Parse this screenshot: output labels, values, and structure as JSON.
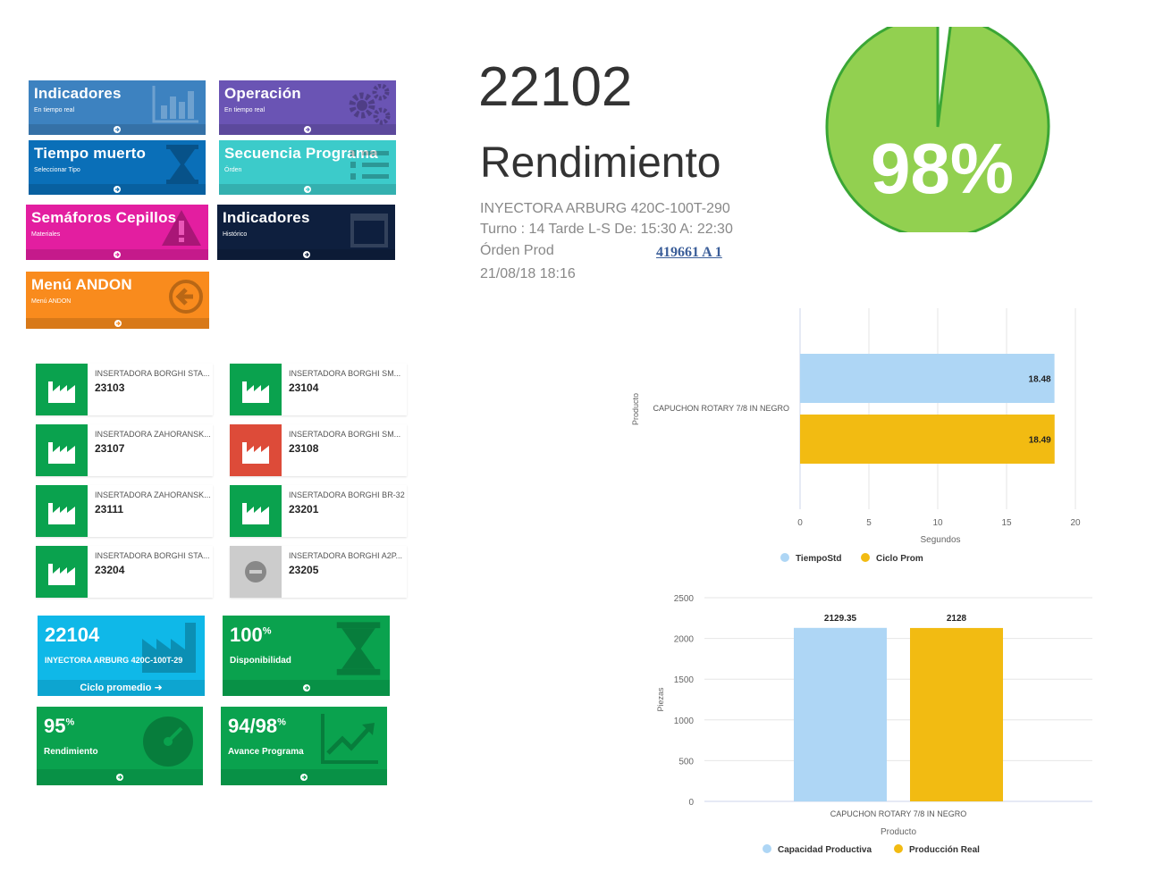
{
  "menu": {
    "tiles": [
      {
        "title": "Indicadores",
        "subtitle": "En tiempo real",
        "color": "#3d82c0",
        "icon": "bar-chart-icon"
      },
      {
        "title": "Operación",
        "subtitle": "En tiempo real",
        "color": "#6a54b4",
        "icon": "gears-icon"
      },
      {
        "title": "Tiempo muerto",
        "subtitle": "Seleccionar Tipo",
        "color": "#0a6fb8",
        "icon": "hourglass-icon"
      },
      {
        "title": "Secuencia Programa",
        "subtitle": "Órden",
        "color": "#3ccbca",
        "icon": "list-icon"
      },
      {
        "title": "Semáforos Cepillos",
        "subtitle": "Materiales",
        "color": "#e31ea0",
        "icon": "warning-icon"
      },
      {
        "title": "Indicadores",
        "subtitle": "Histórico",
        "color": "#0e1f3e",
        "icon": "calendar-icon"
      },
      {
        "title": "Menú ANDON",
        "subtitle": "Menú ANDON",
        "color": "#f98b1d",
        "icon": "back-arrow-icon"
      }
    ]
  },
  "machines": [
    {
      "name": "INSERTADORA BORGHI STA...",
      "number": "23103",
      "status": "green"
    },
    {
      "name": "INSERTADORA BORGHI SM...",
      "number": "23104",
      "status": "green"
    },
    {
      "name": "INSERTADORA ZAHORANSK...",
      "number": "23107",
      "status": "green"
    },
    {
      "name": "INSERTADORA BORGHI SM...",
      "number": "23108",
      "status": "red"
    },
    {
      "name": "INSERTADORA ZAHORANSK...",
      "number": "23111",
      "status": "green"
    },
    {
      "name": "INSERTADORA BORGHI BR-32",
      "number": "23201",
      "status": "green"
    },
    {
      "name": "INSERTADORA BORGHI STA...",
      "number": "23204",
      "status": "green"
    },
    {
      "name": "INSERTADORA BORGHI A2P...",
      "number": "23205",
      "status": "gray"
    }
  ],
  "stats": {
    "machine": {
      "number": "22104",
      "name": "INYECTORA ARBURG 420C-100T-29",
      "footer": "Ciclo promedio"
    },
    "disponibilidad": {
      "value": "100",
      "unit": "%",
      "label": "Disponibilidad"
    },
    "rendimiento": {
      "value": "95",
      "unit": "%",
      "label": "Rendimiento"
    },
    "avance": {
      "value": "94/98",
      "unit": "%",
      "label": "Avance Programa"
    }
  },
  "detail": {
    "number": "22102",
    "title": "Rendimiento",
    "machine_name": "INYECTORA ARBURG 420C-100T-290",
    "shift": "Turno : 14 Tarde L-S De: 15:30 A: 22:30",
    "order_label": "Órden Prod",
    "order_link": "419661 A 1",
    "timestamp": "21/08/18 18:16",
    "gauge_label": "98%",
    "gauge_value": 0.98
  },
  "colors": {
    "green": "#0aa24e",
    "red": "#dd4b39",
    "gray": "#cccccc",
    "series_blue": "#aed6f5",
    "series_yellow": "#f2bb12",
    "gauge_green": "#92d050"
  },
  "chart_data": [
    {
      "type": "bar",
      "orientation": "horizontal",
      "categories": [
        "CAPUCHON ROTARY 7/8 IN NEGRO"
      ],
      "series": [
        {
          "name": "TiempoStd",
          "values": [
            18.48
          ]
        },
        {
          "name": "Ciclo Prom",
          "values": [
            18.49
          ]
        }
      ],
      "xlabel": "Segundos",
      "ylabel": "Producto",
      "xlim": [
        0,
        20
      ],
      "ticks": [
        0,
        5,
        10,
        15,
        20
      ],
      "legend": "bottom"
    },
    {
      "type": "bar",
      "categories": [
        "CAPUCHON ROTARY 7/8 IN NEGRO"
      ],
      "series": [
        {
          "name": "Capacidad Productiva",
          "values": [
            2129.35
          ]
        },
        {
          "name": "Producción Real",
          "values": [
            2128
          ]
        }
      ],
      "xlabel": "Producto",
      "ylabel": "Piezas",
      "ylim": [
        0,
        2500
      ],
      "ticks": [
        0,
        500,
        1000,
        1500,
        2000,
        2500
      ],
      "legend": "bottom"
    }
  ]
}
